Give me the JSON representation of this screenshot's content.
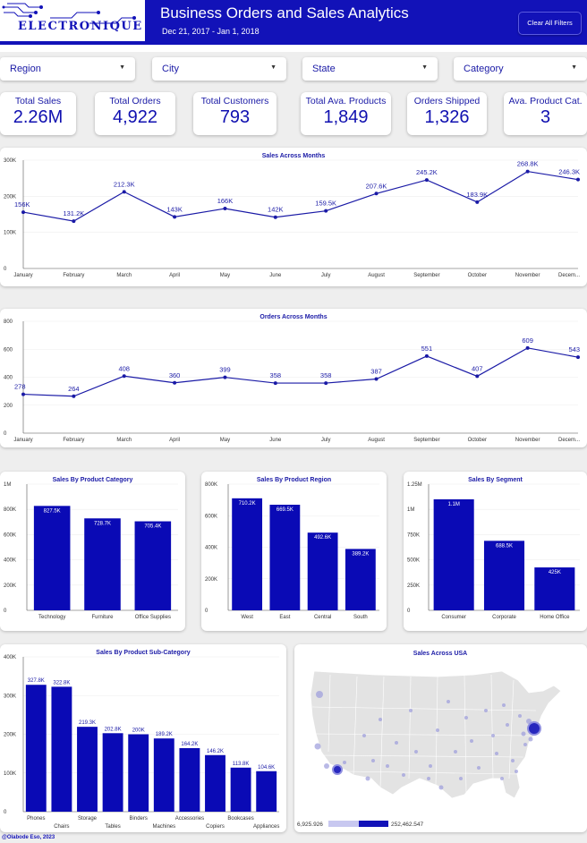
{
  "header": {
    "logo_text": "ELECTRONIQUE",
    "title": "Business Orders and Sales Analytics",
    "date_range": "Dec 21, 2017 - Jan 1, 2018",
    "clear_button": "Clear All Filters"
  },
  "filters": [
    {
      "label": "Region"
    },
    {
      "label": "City"
    },
    {
      "label": "State"
    },
    {
      "label": "Category"
    }
  ],
  "kpis": [
    {
      "label": "Total Sales",
      "value": "2.26M"
    },
    {
      "label": "Total Orders",
      "value": "4,922"
    },
    {
      "label": "Total Customers",
      "value": "793"
    },
    {
      "label": "Total Ava. Products",
      "value": "1,849"
    },
    {
      "label": "Orders Shipped",
      "value": "1,326"
    },
    {
      "label": "Ava. Product Cat.",
      "value": "3"
    }
  ],
  "chart_data": [
    {
      "id": "sales-months",
      "type": "line",
      "title": "Sales Across Months",
      "categories": [
        "January",
        "February",
        "March",
        "April",
        "May",
        "June",
        "July",
        "August",
        "September",
        "October",
        "November",
        "Decem..."
      ],
      "values": [
        156000,
        131200,
        212300,
        143000,
        166000,
        142000,
        159500,
        207600,
        245200,
        183900,
        268800,
        246300
      ],
      "value_labels": [
        "156K",
        "131.2K",
        "212.3K",
        "143K",
        "166K",
        "142K",
        "159.5K",
        "207.6K",
        "245.2K",
        "183.9K",
        "268.8K",
        "246.3K"
      ],
      "ylim": [
        0,
        300000
      ],
      "yticks": [
        0,
        100000,
        200000,
        300000
      ],
      "ytick_labels": [
        "0",
        "100K",
        "200K",
        "300K"
      ]
    },
    {
      "id": "orders-months",
      "type": "line",
      "title": "Orders Across Months",
      "categories": [
        "January",
        "February",
        "March",
        "April",
        "May",
        "June",
        "July",
        "August",
        "September",
        "October",
        "November",
        "Decem..."
      ],
      "values": [
        278,
        264,
        408,
        360,
        399,
        358,
        358,
        387,
        551,
        407,
        609,
        543
      ],
      "value_labels": [
        "278",
        "264",
        "408",
        "360",
        "399",
        "358",
        "358",
        "387",
        "551",
        "407",
        "609",
        "543"
      ],
      "ylim": [
        0,
        800
      ],
      "yticks": [
        0,
        200,
        400,
        600,
        800
      ],
      "ytick_labels": [
        "0",
        "200",
        "400",
        "600",
        "800"
      ]
    },
    {
      "id": "sales-category",
      "type": "bar",
      "title": "Sales By Product Category",
      "categories": [
        "Technology",
        "Furniture",
        "Office Supplies"
      ],
      "values": [
        827500,
        728700,
        705400
      ],
      "value_labels": [
        "827.5K",
        "728.7K",
        "705.4K"
      ],
      "ylim": [
        0,
        1000000
      ],
      "yticks": [
        0,
        200000,
        400000,
        600000,
        800000,
        1000000
      ],
      "ytick_labels": [
        "0",
        "200K",
        "400K",
        "600K",
        "800K",
        "1M"
      ]
    },
    {
      "id": "sales-region",
      "type": "bar",
      "title": "Sales By Product Region",
      "categories": [
        "West",
        "East",
        "Central",
        "South"
      ],
      "values": [
        710200,
        669500,
        492600,
        389200
      ],
      "value_labels": [
        "710.2K",
        "669.5K",
        "492.6K",
        "389.2K"
      ],
      "ylim": [
        0,
        800000
      ],
      "yticks": [
        0,
        200000,
        400000,
        600000,
        800000
      ],
      "ytick_labels": [
        "0",
        "200K",
        "400K",
        "600K",
        "800K"
      ]
    },
    {
      "id": "sales-segment",
      "type": "bar",
      "title": "Sales By Segment",
      "categories": [
        "Consumer",
        "Corporate",
        "Home Office"
      ],
      "values": [
        1100000,
        688500,
        425000
      ],
      "value_labels": [
        "1.1M",
        "688.5K",
        "425K"
      ],
      "ylim": [
        0,
        1250000
      ],
      "yticks": [
        0,
        250000,
        500000,
        750000,
        1000000,
        1250000
      ],
      "ytick_labels": [
        "0",
        "250K",
        "500K",
        "750K",
        "1M",
        "1.25M"
      ]
    },
    {
      "id": "sales-subcategory",
      "type": "bar",
      "title": "Sales By Product Sub-Category",
      "categories": [
        "Phones",
        "Chairs",
        "Storage",
        "Tables",
        "Binders",
        "Machines",
        "Accessories",
        "Copiers",
        "Bookcases",
        "Appliances"
      ],
      "values": [
        327800,
        322800,
        219300,
        202800,
        200000,
        189200,
        164200,
        146200,
        113800,
        104600
      ],
      "value_labels": [
        "327.8K",
        "322.8K",
        "219.3K",
        "202.8K",
        "200K",
        "189.2K",
        "164.2K",
        "146.2K",
        "113.8K",
        "104.6K"
      ],
      "ylim": [
        0,
        400000
      ],
      "yticks": [
        0,
        100000,
        200000,
        300000,
        400000
      ],
      "ytick_labels": [
        "0",
        "100K",
        "200K",
        "300K",
        "400K"
      ]
    }
  ],
  "map": {
    "title": "Sales Across USA",
    "legend_min": "6,925.926",
    "legend_max": "252,462.547"
  },
  "footer": "@Olabode Eso, 2023",
  "colors": {
    "brand": "#1212b8",
    "bar": "#0a0ab5",
    "line": "#1a1aa6",
    "background": "#eeeeee"
  }
}
